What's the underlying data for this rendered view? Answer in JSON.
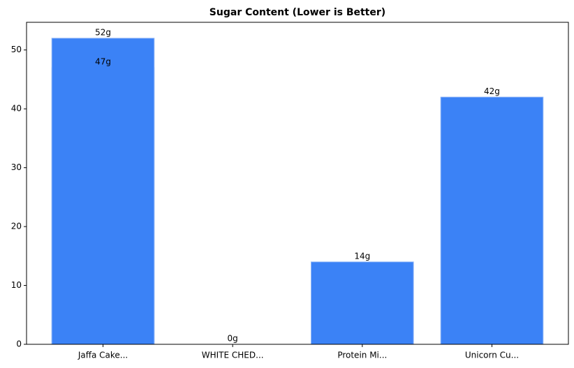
{
  "chart_data": {
    "type": "bar",
    "title": "Sugar Content (Lower is Better)",
    "x": [
      0,
      0,
      1,
      2,
      3
    ],
    "values": [
      47,
      52,
      0,
      14,
      42
    ],
    "value_labels": [
      "47g",
      "52g",
      "0g",
      "14g",
      "42g"
    ],
    "color": "#3b82f6",
    "xlim": [
      -0.59,
      3.59
    ],
    "xticks": [
      {
        "value": 0,
        "label": "Jaffa Cake..."
      },
      {
        "value": 1,
        "label": "WHITE CHED..."
      },
      {
        "value": 2,
        "label": "Protein Mi..."
      },
      {
        "value": 3,
        "label": "Unicorn Cu..."
      }
    ],
    "ylim": [
      0,
      54.7
    ],
    "yticks": [
      0,
      10,
      20,
      30,
      40,
      50
    ],
    "grid": false
  }
}
